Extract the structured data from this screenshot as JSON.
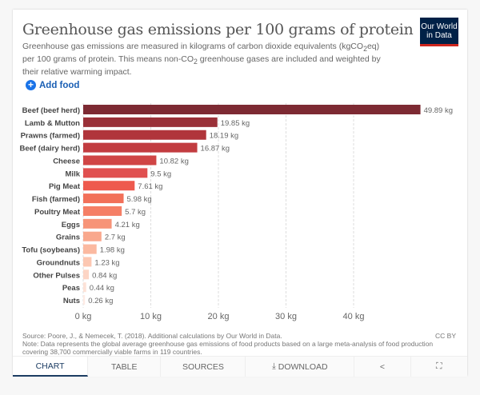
{
  "header": {
    "title": "Greenhouse gas emissions per 100 grams of protein",
    "subtitle_html": "Greenhouse gas emissions are measured in kilograms of carbon dioxide equivalents (kgCO<sub>2</sub>eq) per 100 grams of protein. This means non-CO<sub>2</sub> greenhouse gases are included and weighted by their relative warming impact.",
    "logo": "Our World in Data",
    "add_food": "Add food"
  },
  "chart_data": {
    "type": "bar",
    "orientation": "horizontal",
    "categories": [
      "Beef (beef herd)",
      "Lamb & Mutton",
      "Prawns (farmed)",
      "Beef (dairy herd)",
      "Cheese",
      "Milk",
      "Pig Meat",
      "Fish (farmed)",
      "Poultry Meat",
      "Eggs",
      "Grains",
      "Tofu (soybeans)",
      "Groundnuts",
      "Other Pulses",
      "Peas",
      "Nuts"
    ],
    "values": [
      49.89,
      19.85,
      18.19,
      16.87,
      10.82,
      9.5,
      7.61,
      5.98,
      5.7,
      4.21,
      2.7,
      1.98,
      1.23,
      0.84,
      0.44,
      0.26
    ],
    "value_labels": [
      "49.89 kg",
      "19.85 kg",
      "18.19 kg",
      "16.87 kg",
      "10.82 kg",
      "9.5 kg",
      "7.61 kg",
      "5.98 kg",
      "5.7 kg",
      "4.21 kg",
      "2.7 kg",
      "1.98 kg",
      "1.23 kg",
      "0.84 kg",
      "0.44 kg",
      "0.26 kg"
    ],
    "colors": [
      "#7d2a33",
      "#9a3038",
      "#b0353b",
      "#c23c40",
      "#d04545",
      "#e05050",
      "#ee5a4e",
      "#f27059",
      "#f57f66",
      "#f79478",
      "#f9a88d",
      "#fbb9a0",
      "#fcc7b2",
      "#fdd5c5",
      "#fde2d7",
      "#feebe4"
    ],
    "xticks": [
      0,
      10,
      20,
      30,
      40
    ],
    "xtick_labels": [
      "0 kg",
      "10 kg",
      "20 kg",
      "30 kg",
      "40 kg"
    ],
    "xlim": [
      0,
      50
    ],
    "grid": true
  },
  "footer": {
    "source": "Source: Poore, J., & Nemecek, T. (2018). Additional calculations by Our World in Data.",
    "note": "Note: Data represents the global average greenhouse gas emissions of food products based on a large meta-analysis of food production covering 38,700 commercially viable farms in 119 countries.",
    "license": "CC BY"
  },
  "tabs": [
    "CHART",
    "TABLE",
    "SOURCES",
    "DOWNLOAD"
  ],
  "icons": {
    "download": "download-icon",
    "share": "share-icon",
    "fullscreen": "fullscreen-icon"
  }
}
